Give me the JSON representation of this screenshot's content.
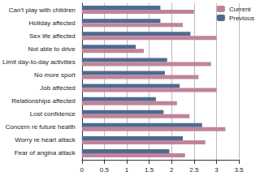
{
  "chart_data": {
    "type": "bar",
    "orientation": "horizontal",
    "categories": [
      "Can't play with children",
      "Holiday affected",
      "Sex life affected",
      "Not able to drive",
      "Limit day-to-day activities",
      "No more sport",
      "Job affected",
      "Relationships affected",
      "Lost confidence",
      "Concern re future health",
      "Worry re heart attack",
      "Fear of angina attack"
    ],
    "series": [
      {
        "name": "Current",
        "color": "#c0849a",
        "values": [
          2.5,
          2.25,
          3.0,
          1.38,
          2.88,
          2.6,
          3.0,
          2.12,
          2.4,
          3.2,
          2.75,
          2.3
        ]
      },
      {
        "name": "Previous",
        "color": "#4f6a8f",
        "values": [
          1.75,
          1.75,
          2.42,
          1.2,
          1.9,
          1.85,
          2.18,
          1.65,
          1.82,
          2.68,
          2.25,
          1.95
        ]
      }
    ],
    "xlim": [
      0,
      3.5
    ],
    "xticks": [
      0,
      0.5,
      1,
      1.5,
      2,
      2.5,
      3,
      3.5
    ],
    "grid": true,
    "legend": "top-right"
  }
}
